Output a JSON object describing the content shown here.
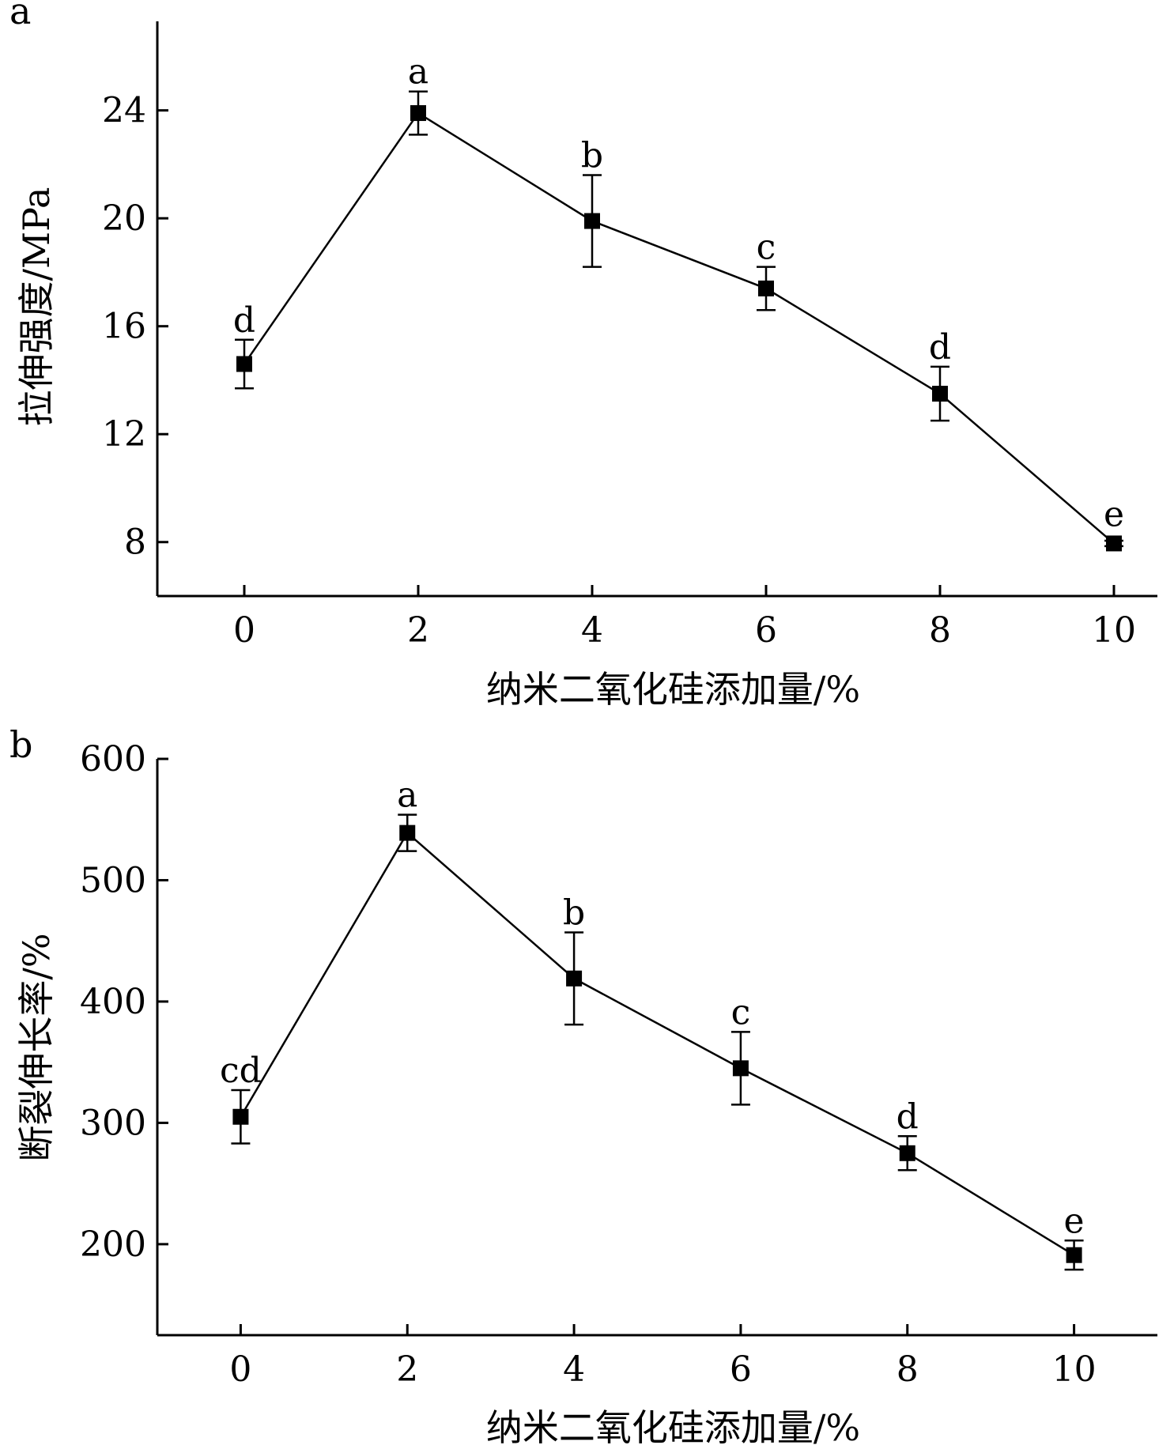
{
  "chart_data": [
    {
      "type": "line",
      "panel_label": "a",
      "xlabel": "纳米二氧化硅添加量/%",
      "ylabel": "拉伸强度/MPa",
      "x": [
        0,
        2,
        4,
        6,
        8,
        10
      ],
      "x_ticks": [
        0,
        2,
        4,
        6,
        8,
        10
      ],
      "y_ticks": [
        8,
        12,
        16,
        20,
        24
      ],
      "xlim": [
        -1,
        10.5
      ],
      "ylim": [
        6,
        27.3
      ],
      "series": [
        {
          "values": [
            14.6,
            23.9,
            19.9,
            17.4,
            13.5,
            7.95
          ],
          "error": [
            0.9,
            0.8,
            1.7,
            0.8,
            1.0,
            0.1
          ],
          "labels": [
            "d",
            "a",
            "b",
            "c",
            "d",
            "e"
          ],
          "marker": "square",
          "color": "#000000"
        }
      ],
      "grid": false
    },
    {
      "type": "line",
      "panel_label": "b",
      "xlabel": "纳米二氧化硅添加量/%",
      "ylabel": "断裂伸长率/%",
      "x": [
        0,
        2,
        4,
        6,
        8,
        10
      ],
      "x_ticks": [
        0,
        2,
        4,
        6,
        8,
        10
      ],
      "y_ticks": [
        200,
        300,
        400,
        500,
        600
      ],
      "xlim": [
        -1,
        11
      ],
      "ylim": [
        125,
        600
      ],
      "series": [
        {
          "values": [
            305,
            539,
            419,
            345,
            275,
            191
          ],
          "error": [
            22,
            15,
            38,
            30,
            14,
            12
          ],
          "labels": [
            "cd",
            "a",
            "b",
            "c",
            "d",
            "e"
          ],
          "marker": "square",
          "color": "#000000"
        }
      ],
      "grid": false
    }
  ]
}
